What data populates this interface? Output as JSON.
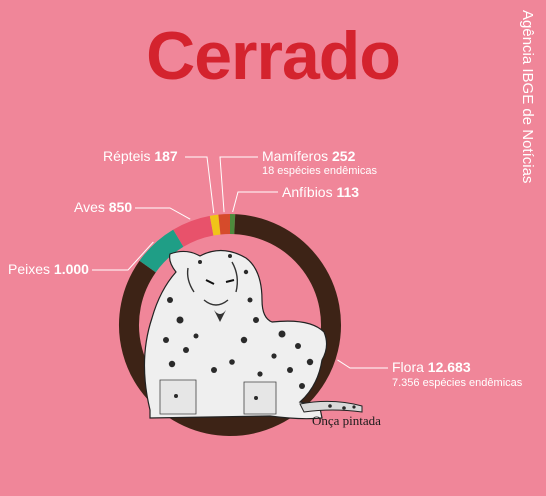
{
  "title": "Cerrado",
  "brand": "Agência IBGE de Notícias",
  "caption": "Onça pintada",
  "colors": {
    "background": "#f08699",
    "title": "#d4232e",
    "flora": "#3d2316",
    "peixes": "#1f9e86",
    "aves": "#e8526b",
    "repteis": "#f0c419",
    "mamiferos": "#d64b2b",
    "anfibios": "#4d8a3c"
  },
  "chart_data": {
    "type": "pie",
    "variant": "donut",
    "title": "Cerrado",
    "categories": [
      "Flora",
      "Peixes",
      "Aves",
      "Répteis",
      "Mamíferos",
      "Anfíbios"
    ],
    "values": [
      12683,
      1000,
      850,
      187,
      252,
      113
    ],
    "value_labels": [
      "12.683",
      "1.000",
      "850",
      "187",
      "252",
      "113"
    ],
    "notes": {
      "Flora": "7.356 espécies endêmicas",
      "Mamíferos": "18 espécies endêmicas"
    }
  }
}
